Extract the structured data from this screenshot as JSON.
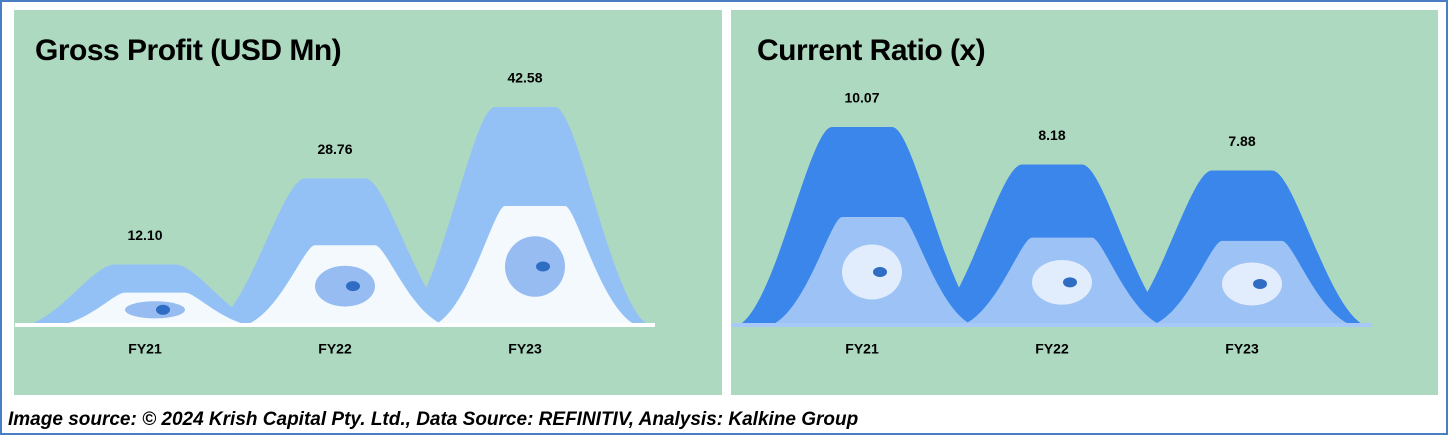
{
  "chart_data": [
    {
      "type": "area",
      "title": "Gross Profit (USD Mn)",
      "categories": [
        "FY21",
        "FY22",
        "FY23"
      ],
      "values": [
        12.1,
        28.76,
        42.58
      ],
      "value_labels": [
        "12.10",
        "28.76",
        "42.58"
      ],
      "color": "#93c1f5"
    },
    {
      "type": "area",
      "title": "Current Ratio (x)",
      "categories": [
        "FY21",
        "FY22",
        "FY23"
      ],
      "values": [
        10.07,
        8.18,
        7.88
      ],
      "color": "#3a86ea"
    }
  ],
  "source": "Image source: © 2024 Krish Capital Pty. Ltd., Data Source: REFINITIV, Analysis: Kalkine Group"
}
